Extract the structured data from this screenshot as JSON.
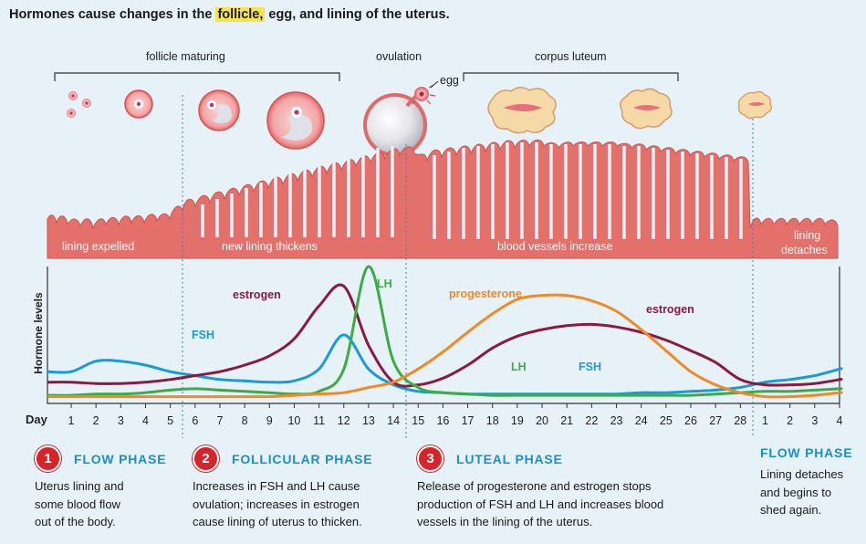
{
  "title": {
    "prefix": "Hormones cause changes in the ",
    "highlight": "follicle,",
    "suffix": " egg, and lining of the uterus."
  },
  "top_labels": {
    "follicle_maturing": "follicle maturing",
    "ovulation": "ovulation",
    "egg": "egg",
    "corpus_luteum": "corpus luteum"
  },
  "lining_labels": {
    "expelled": "lining expelled",
    "thickens": "new lining thickens",
    "vessels": "blood vessels increase",
    "detaches_1": "lining",
    "detaches_2": "detaches"
  },
  "chart_data": {
    "type": "line",
    "ylabel": "Hormone levels",
    "xlabel": "Day",
    "x": [
      1,
      2,
      3,
      4,
      5,
      6,
      7,
      8,
      9,
      10,
      11,
      12,
      13,
      14,
      15,
      16,
      17,
      18,
      19,
      20,
      21,
      22,
      23,
      24,
      25,
      26,
      27,
      28,
      29,
      30,
      31,
      32
    ],
    "tick_labels": [
      "1",
      "2",
      "3",
      "4",
      "5",
      "6",
      "7",
      "8",
      "9",
      "10",
      "11",
      "12",
      "13",
      "14",
      "15",
      "16",
      "17",
      "18",
      "19",
      "20",
      "21",
      "22",
      "23",
      "24",
      "25",
      "26",
      "27",
      "28",
      "1",
      "2",
      "3",
      "4"
    ],
    "ylim": [
      0,
      100
    ],
    "series": [
      {
        "name": "FSH",
        "color": "#1a9bd7",
        "values": [
          20,
          28,
          28,
          25,
          20,
          17,
          14,
          13,
          12,
          13,
          22,
          48,
          22,
          10,
          5,
          4,
          3,
          3,
          3,
          3,
          3,
          3,
          3,
          4,
          4,
          5,
          6,
          8,
          12,
          14,
          17,
          22
        ]
      },
      {
        "name": "estrogen",
        "color": "#8b1a3e",
        "values": [
          12,
          11,
          11,
          12,
          14,
          17,
          20,
          25,
          32,
          45,
          70,
          85,
          40,
          12,
          10,
          15,
          25,
          38,
          47,
          52,
          55,
          56,
          54,
          50,
          44,
          36,
          27,
          14,
          10,
          10,
          11,
          14
        ]
      },
      {
        "name": "LH",
        "color": "#3cab47",
        "values": [
          2,
          3,
          3,
          4,
          6,
          7,
          6,
          5,
          4,
          3,
          5,
          22,
          100,
          28,
          8,
          4,
          3,
          2,
          2,
          2,
          2,
          2,
          2,
          2,
          2,
          2,
          3,
          4,
          5,
          5,
          6,
          7
        ]
      },
      {
        "name": "progesterone",
        "color": "#f08a26",
        "values": [
          1,
          1,
          1,
          1,
          1,
          1,
          1,
          1,
          1,
          2,
          3,
          4,
          8,
          12,
          22,
          35,
          50,
          64,
          75,
          78,
          78,
          74,
          66,
          52,
          36,
          20,
          10,
          4,
          1,
          1,
          2,
          4
        ]
      }
    ]
  },
  "phases": [
    {
      "num": "1",
      "title": "FLOW PHASE",
      "lines": [
        "Uterus lining and",
        "some blood flow",
        "out of the body."
      ]
    },
    {
      "num": "2",
      "title": "FOLLICULAR PHASE",
      "lines": [
        "Increases in FSH and LH cause",
        "ovulation; increases in estrogen",
        "cause lining of uterus to thicken."
      ]
    },
    {
      "num": "3",
      "title": "LUTEAL PHASE",
      "lines": [
        "Release of progesterone and estrogen stops",
        "production of FSH and LH and increases blood",
        "vessels in the lining of the uterus."
      ]
    },
    {
      "num": "",
      "title": "FLOW PHASE",
      "lines": [
        "Lining detaches",
        "and begins to",
        "shed again."
      ]
    }
  ],
  "colors": {
    "lining": "#e4706c",
    "lining_dark": "#c9524e",
    "divider": "#2e84c4",
    "phase_title": "#1a8fcf",
    "badge": "#d8232a",
    "background": "#e6f1f8"
  }
}
